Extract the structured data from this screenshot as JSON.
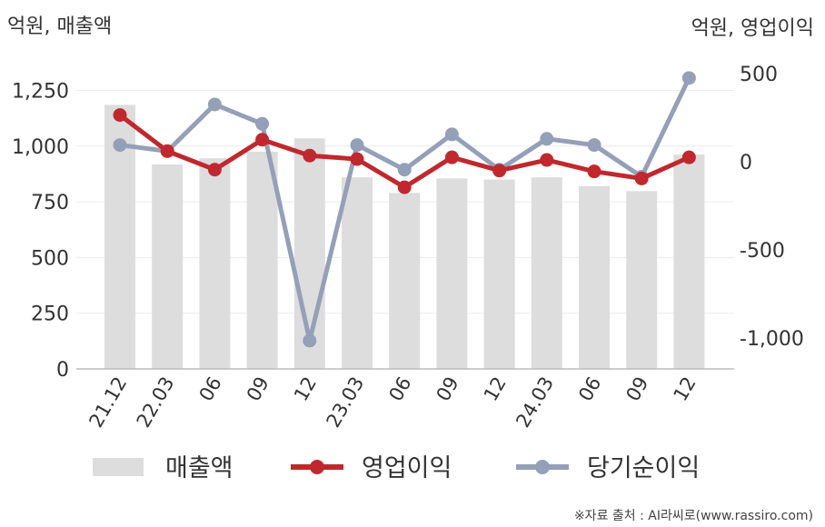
{
  "chart_data": {
    "type": "bar+line",
    "left_unit_label": "억원, 매출액",
    "right_unit_label": "억원, 영업이익",
    "categories": [
      "21.12",
      "22.03",
      "06",
      "09",
      "12",
      "23.03",
      "06",
      "09",
      "12",
      "24.03",
      "06",
      "09",
      "12"
    ],
    "left_axis": {
      "ticks": [
        0,
        250,
        500,
        750,
        1000,
        1250
      ],
      "tick_labels": [
        "0",
        "250",
        "500",
        "750",
        "1,000",
        "1,250"
      ],
      "ylim": [
        0,
        1250
      ]
    },
    "right_axis": {
      "ticks": [
        -1000,
        -500,
        0,
        500
      ],
      "tick_labels": [
        "-1,000",
        "-500",
        "0",
        "500"
      ],
      "ylim": [
        -1170,
        500
      ]
    },
    "series": [
      {
        "name": "매출액",
        "kind": "bar",
        "axis": "left",
        "color": "#dddddd",
        "values": [
          1185,
          918,
          945,
          975,
          1035,
          860,
          790,
          855,
          850,
          860,
          820,
          798,
          962
        ]
      },
      {
        "name": "영업이익",
        "kind": "line",
        "axis": "right",
        "color": "#c0282d",
        "values": [
          265,
          60,
          -45,
          125,
          35,
          15,
          -145,
          25,
          -50,
          10,
          -55,
          -95,
          25
        ]
      },
      {
        "name": "당기순이익",
        "kind": "line",
        "axis": "right",
        "color": "#94a0b8",
        "values": [
          95,
          60,
          325,
          215,
          -1015,
          95,
          -45,
          155,
          -45,
          130,
          95,
          -85,
          475
        ]
      }
    ],
    "grid": true,
    "legend_position": "bottom"
  },
  "source_text": "※자료 출처 : AI라씨로(www.rassiro.com)"
}
